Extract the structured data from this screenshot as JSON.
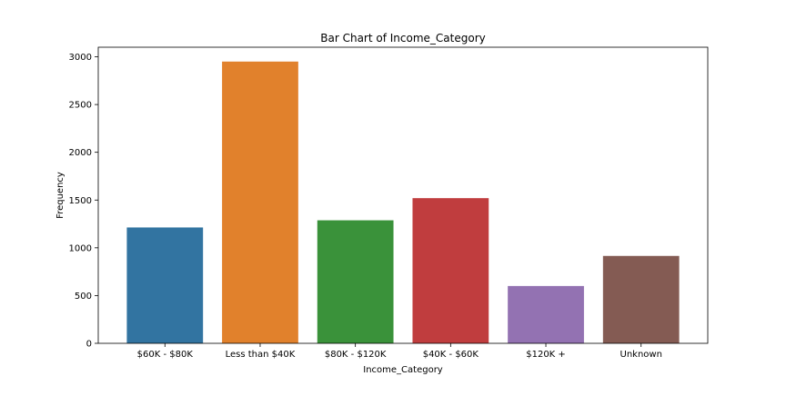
{
  "chart_data": {
    "type": "bar",
    "title": "Bar Chart of Income_Category",
    "xlabel": "Income_Category",
    "ylabel": "Frequency",
    "categories": [
      "$60K - $80K",
      "Less than $40K",
      "$80K - $120K",
      "$40K - $60K",
      "$120K +",
      "Unknown"
    ],
    "values": [
      1213,
      2950,
      1288,
      1520,
      600,
      915
    ],
    "colors": [
      "#3274a1",
      "#e1812c",
      "#3a923a",
      "#c03d3e",
      "#9372b2",
      "#845b53"
    ],
    "ylim": [
      0,
      3100
    ],
    "yticks": [
      0,
      500,
      1000,
      1500,
      2000,
      2500,
      3000
    ],
    "grid": false,
    "legend": "none"
  }
}
